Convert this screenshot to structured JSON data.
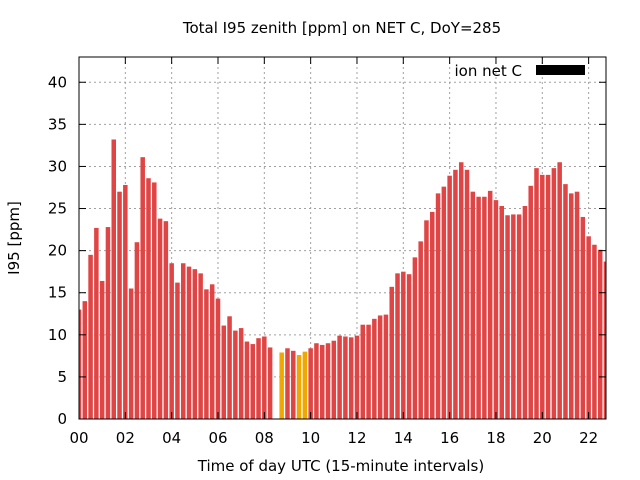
{
  "chart_data": {
    "type": "bar",
    "title": "Total I95 zenith [ppm] on NET C, DoY=285",
    "xlabel": "Time of day UTC (15-minute intervals)",
    "ylabel": "I95 [ppm]",
    "xlim": [
      0,
      22.75
    ],
    "ylim": [
      0,
      43
    ],
    "x_step_hours": 0.25,
    "x_ticks": [
      {
        "value": 0,
        "label": "00"
      },
      {
        "value": 2,
        "label": "02"
      },
      {
        "value": 4,
        "label": "04"
      },
      {
        "value": 6,
        "label": "06"
      },
      {
        "value": 8,
        "label": "08"
      },
      {
        "value": 10,
        "label": "10"
      },
      {
        "value": 12,
        "label": "12"
      },
      {
        "value": 14,
        "label": "14"
      },
      {
        "value": 16,
        "label": "16"
      },
      {
        "value": 18,
        "label": "18"
      },
      {
        "value": 20,
        "label": "20"
      },
      {
        "value": 22,
        "label": "22"
      }
    ],
    "y_ticks": [
      0,
      5,
      10,
      15,
      20,
      25,
      30,
      35,
      40
    ],
    "grid": true,
    "legend": {
      "label": "ion net C",
      "position": "top-right"
    },
    "colors": {
      "normal": "#e04545",
      "highlight": "#f0a800",
      "legend_swatch": "#000000"
    },
    "highlight_indices": [
      35,
      38,
      39
    ],
    "values": [
      13.0,
      14.0,
      19.5,
      22.7,
      16.4,
      22.8,
      33.2,
      27.0,
      27.8,
      15.5,
      21.0,
      31.1,
      28.6,
      28.1,
      23.8,
      23.5,
      18.5,
      16.2,
      18.5,
      18.1,
      17.8,
      17.3,
      15.4,
      16.0,
      14.3,
      11.1,
      12.2,
      10.5,
      10.8,
      9.2,
      8.9,
      9.6,
      9.8,
      8.5,
      0,
      7.9,
      8.4,
      8.1,
      7.6,
      8.0,
      8.4,
      9.0,
      8.8,
      9.0,
      9.3,
      9.9,
      9.8,
      9.7,
      9.9,
      11.2,
      11.2,
      11.9,
      12.3,
      12.4,
      15.7,
      17.3,
      17.5,
      17.2,
      19.2,
      21.1,
      23.6,
      24.6,
      26.8,
      27.6,
      28.9,
      29.6,
      30.5,
      29.6,
      27.0,
      26.4,
      26.4,
      27.1,
      26.0,
      25.3,
      24.2,
      24.3,
      24.3,
      25.3,
      27.7,
      29.8,
      29.0,
      29.0,
      29.8,
      30.5,
      27.9,
      26.8,
      27.0,
      24.0,
      21.7,
      20.7,
      20.1,
      18.7
    ]
  }
}
